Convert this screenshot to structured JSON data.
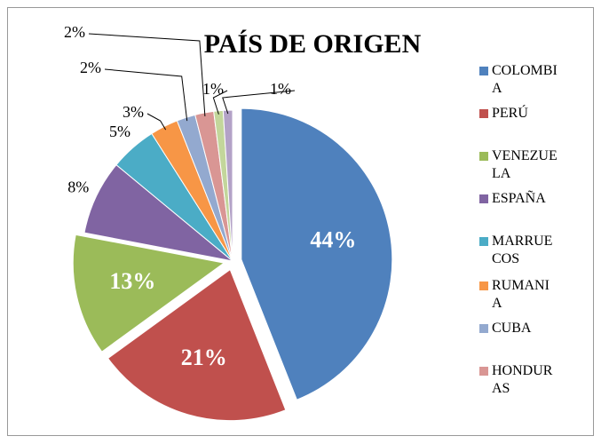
{
  "chart_data": {
    "type": "pie",
    "title": "PAÍS DE ORIGEN",
    "categories": [
      "COLOMBIA",
      "PERÚ",
      "VENEZUELA",
      "ESPAÑA",
      "MARRUECOS",
      "RUMANIA",
      "CUBA",
      "HONDURAS",
      null,
      null
    ],
    "values": [
      44,
      21,
      13,
      8,
      5,
      3,
      2,
      2,
      1,
      1
    ],
    "value_labels": [
      "44%",
      "21%",
      "13%",
      "8%",
      "5%",
      "3%",
      "2%",
      "2%",
      "1%",
      "1%"
    ],
    "colors": [
      "#4f81bd",
      "#c0504d",
      "#9bbb59",
      "#8064a2",
      "#4bacc6",
      "#f79646",
      "#93a9cf",
      "#d99694",
      "#c3d69b",
      "#b3a2c7"
    ],
    "legend": "right"
  }
}
